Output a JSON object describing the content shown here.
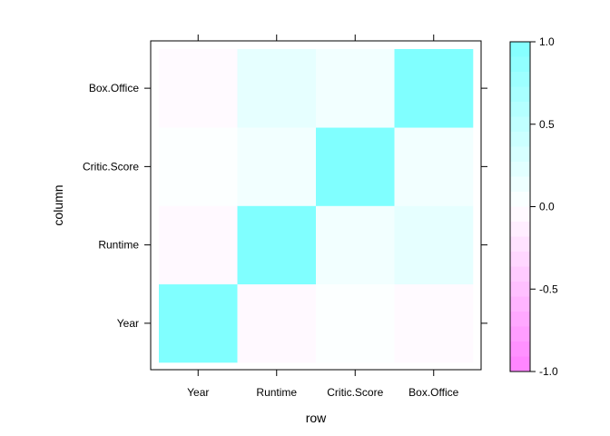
{
  "chart_data": {
    "type": "heatmap",
    "xlabel": "row",
    "ylabel": "column",
    "x_categories": [
      "Year",
      "Runtime",
      "Critic.Score",
      "Box.Office"
    ],
    "y_categories": [
      "Year",
      "Runtime",
      "Critic.Score",
      "Box.Office"
    ],
    "values": [
      [
        1.0,
        -0.05,
        0.02,
        -0.04
      ],
      [
        -0.05,
        1.0,
        0.1,
        0.2
      ],
      [
        0.02,
        0.1,
        1.0,
        0.1
      ],
      [
        -0.04,
        0.2,
        0.1,
        1.0
      ]
    ],
    "colorbar": {
      "range": [
        -1.0,
        1.0
      ],
      "ticks": [
        "1.0",
        "0.5",
        "0.0",
        "-0.5",
        "-1.0"
      ],
      "tick_values": [
        1.0,
        0.5,
        0.0,
        -0.5,
        -1.0
      ],
      "low_color": "#ff80ff",
      "mid_color": "#ffffff",
      "high_color": "#80ffff"
    },
    "grid": false,
    "legend": "right"
  }
}
